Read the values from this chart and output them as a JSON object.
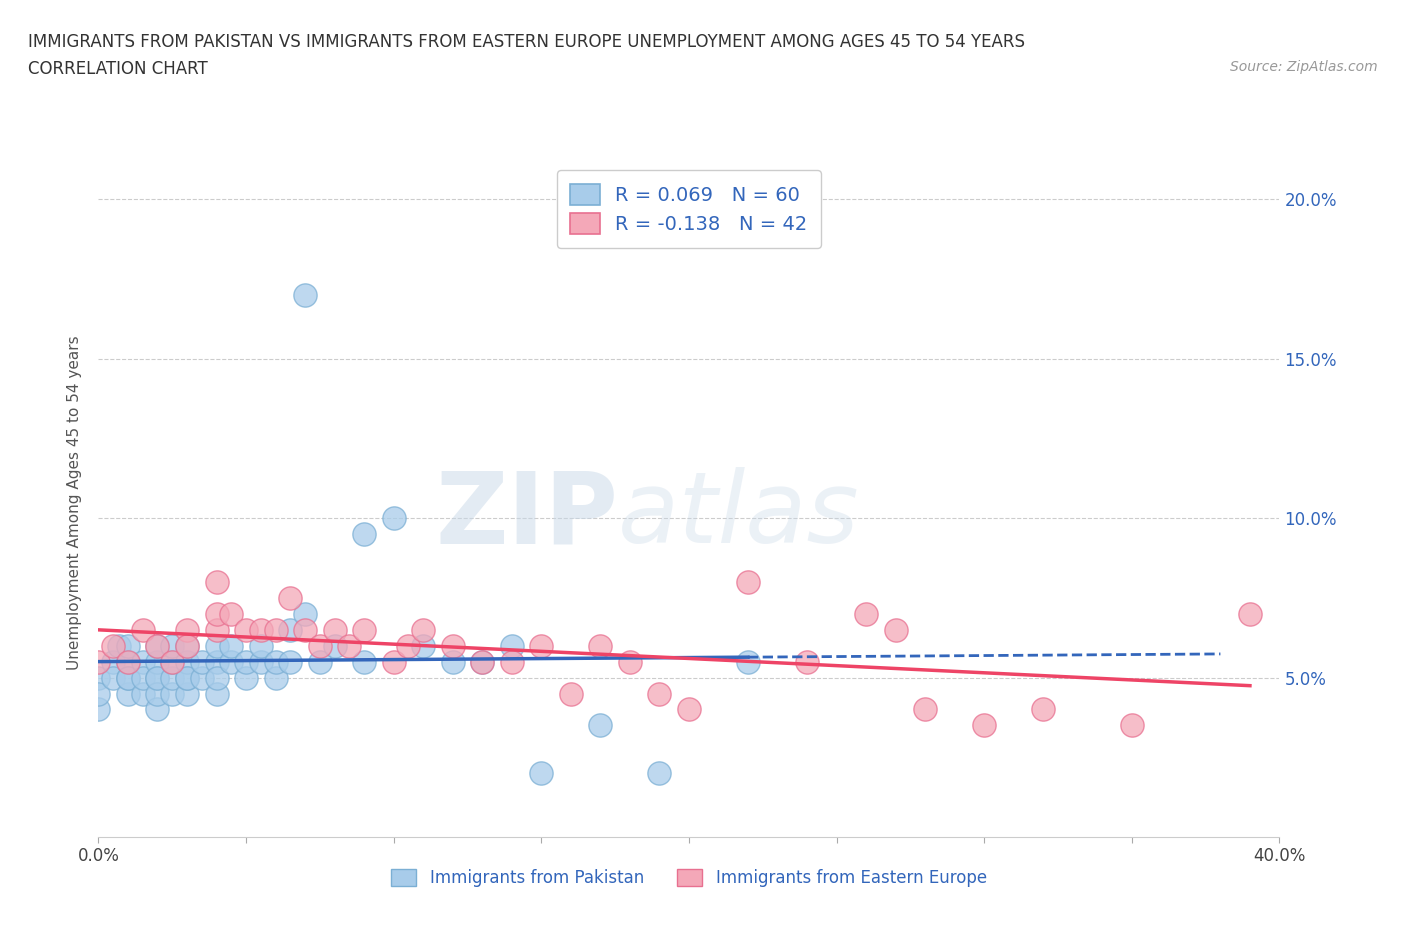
{
  "title_line1": "IMMIGRANTS FROM PAKISTAN VS IMMIGRANTS FROM EASTERN EUROPE UNEMPLOYMENT AMONG AGES 45 TO 54 YEARS",
  "title_line2": "CORRELATION CHART",
  "source_text": "Source: ZipAtlas.com",
  "ylabel": "Unemployment Among Ages 45 to 54 years",
  "xlim": [
    0.0,
    0.4
  ],
  "ylim": [
    0.0,
    0.21
  ],
  "xticks": [
    0.0,
    0.05,
    0.1,
    0.15,
    0.2,
    0.25,
    0.3,
    0.35,
    0.4
  ],
  "yticks": [
    0.05,
    0.1,
    0.15,
    0.2
  ],
  "ytick_labels": [
    "5.0%",
    "10.0%",
    "15.0%",
    "20.0%"
  ],
  "xtick_labels": [
    "0.0%",
    "",
    "",
    "",
    "",
    "",
    "",
    "",
    "40.0%"
  ],
  "pakistan_color": "#A8CCEA",
  "eastern_color": "#F4A8B8",
  "pakistan_edge": "#7BAFD4",
  "eastern_edge": "#E87090",
  "trend_pakistan_color": "#3366BB",
  "trend_eastern_color": "#EE4466",
  "ytick_color": "#3366BB",
  "R_pakistan": 0.069,
  "N_pakistan": 60,
  "R_eastern": -0.138,
  "N_eastern": 42,
  "pakistan_x": [
    0.0,
    0.0,
    0.0,
    0.005,
    0.005,
    0.007,
    0.01,
    0.01,
    0.01,
    0.01,
    0.01,
    0.015,
    0.015,
    0.015,
    0.02,
    0.02,
    0.02,
    0.02,
    0.02,
    0.02,
    0.025,
    0.025,
    0.025,
    0.025,
    0.03,
    0.03,
    0.03,
    0.03,
    0.03,
    0.035,
    0.035,
    0.04,
    0.04,
    0.04,
    0.04,
    0.045,
    0.045,
    0.05,
    0.05,
    0.055,
    0.055,
    0.06,
    0.06,
    0.065,
    0.065,
    0.07,
    0.07,
    0.075,
    0.08,
    0.09,
    0.09,
    0.1,
    0.11,
    0.12,
    0.13,
    0.14,
    0.15,
    0.17,
    0.19,
    0.22
  ],
  "pakistan_y": [
    0.04,
    0.05,
    0.045,
    0.055,
    0.05,
    0.06,
    0.045,
    0.05,
    0.055,
    0.06,
    0.05,
    0.045,
    0.055,
    0.05,
    0.04,
    0.05,
    0.055,
    0.06,
    0.045,
    0.05,
    0.045,
    0.05,
    0.055,
    0.06,
    0.045,
    0.05,
    0.055,
    0.06,
    0.05,
    0.05,
    0.055,
    0.045,
    0.055,
    0.06,
    0.05,
    0.055,
    0.06,
    0.05,
    0.055,
    0.055,
    0.06,
    0.05,
    0.055,
    0.065,
    0.055,
    0.07,
    0.17,
    0.055,
    0.06,
    0.095,
    0.055,
    0.1,
    0.06,
    0.055,
    0.055,
    0.06,
    0.02,
    0.035,
    0.02,
    0.055
  ],
  "eastern_x": [
    0.0,
    0.005,
    0.01,
    0.015,
    0.02,
    0.025,
    0.03,
    0.03,
    0.04,
    0.04,
    0.04,
    0.045,
    0.05,
    0.055,
    0.06,
    0.065,
    0.07,
    0.075,
    0.08,
    0.085,
    0.09,
    0.1,
    0.105,
    0.11,
    0.12,
    0.13,
    0.14,
    0.15,
    0.16,
    0.17,
    0.18,
    0.19,
    0.2,
    0.22,
    0.24,
    0.26,
    0.27,
    0.28,
    0.3,
    0.32,
    0.35,
    0.39
  ],
  "eastern_y": [
    0.055,
    0.06,
    0.055,
    0.065,
    0.06,
    0.055,
    0.065,
    0.06,
    0.065,
    0.07,
    0.08,
    0.07,
    0.065,
    0.065,
    0.065,
    0.075,
    0.065,
    0.06,
    0.065,
    0.06,
    0.065,
    0.055,
    0.06,
    0.065,
    0.06,
    0.055,
    0.055,
    0.06,
    0.045,
    0.06,
    0.055,
    0.045,
    0.04,
    0.08,
    0.055,
    0.07,
    0.065,
    0.04,
    0.035,
    0.04,
    0.035,
    0.07
  ],
  "watermark_zip": "ZIP",
  "watermark_atlas": "atlas",
  "background_color": "#FFFFFF",
  "grid_color": "#CCCCCC",
  "legend_label_pakistan": "Immigrants from Pakistan",
  "legend_label_eastern": "Immigrants from Eastern Europe"
}
